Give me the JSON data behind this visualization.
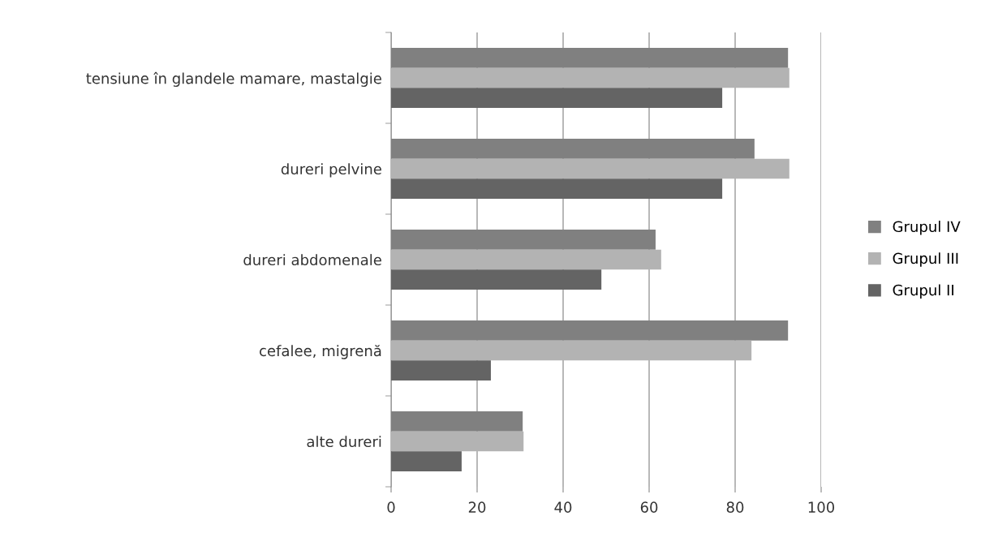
{
  "chart_data": {
    "type": "bar",
    "orientation": "horizontal",
    "categories": [
      "tensiune în glandele mamare, mastalgie",
      "dureri pelvine",
      "dureri abdomenale",
      "cefalee, migrenă",
      "alte dureri"
    ],
    "series": [
      {
        "name": "Grupul IV",
        "color": "#808080",
        "values": [
          92.3,
          84.5,
          61.5,
          92.3,
          30.6
        ]
      },
      {
        "name": "Grupul III",
        "color": "#b3b3b3",
        "values": [
          92.6,
          92.6,
          62.8,
          83.8,
          30.8
        ]
      },
      {
        "name": "Grupul II",
        "color": "#646464",
        "values": [
          77,
          77,
          48.9,
          23.2,
          16.4
        ]
      }
    ],
    "xlim": [
      0,
      100
    ],
    "xticks": [
      0,
      20,
      40,
      60,
      80,
      100
    ],
    "grid": "x",
    "legend": "right"
  }
}
